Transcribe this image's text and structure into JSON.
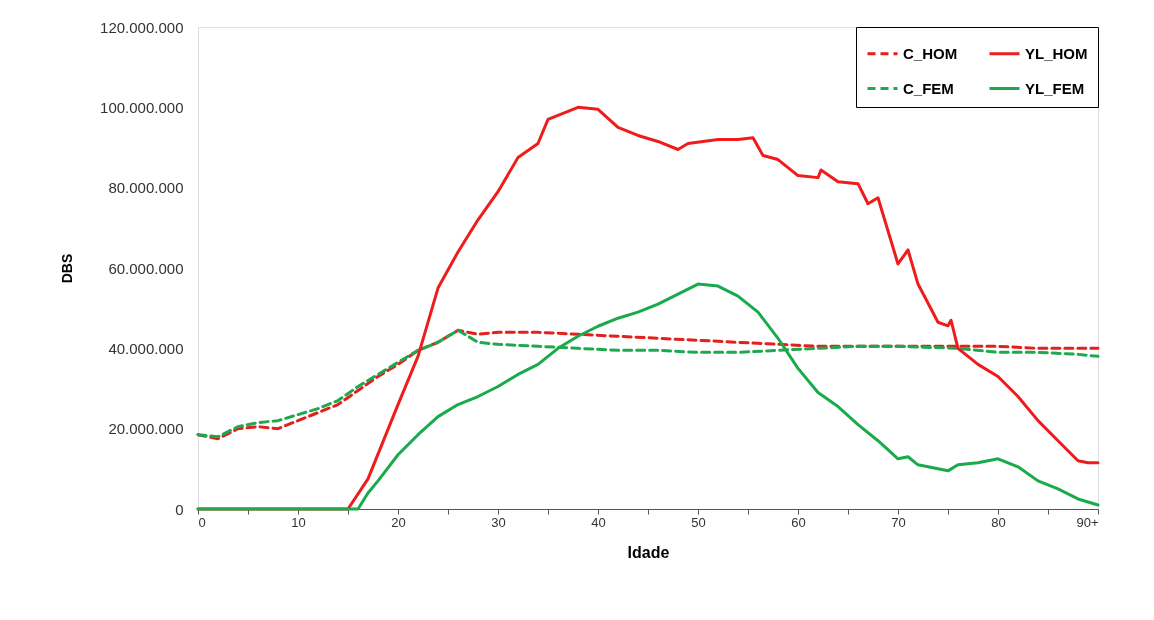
{
  "chart_data": {
    "type": "line",
    "xlabel": "Idade",
    "ylabel": "DBS",
    "xlim": [
      0,
      90
    ],
    "ylim": [
      0,
      120000000
    ],
    "xticks": [
      0,
      {
        "value": 5,
        "label": null
      },
      10,
      {
        "value": 15,
        "label": null
      },
      20,
      {
        "value": 25,
        "label": null
      },
      30,
      {
        "value": 35,
        "label": null
      },
      40,
      {
        "value": 45,
        "label": null
      },
      50,
      {
        "value": 55,
        "label": null
      },
      60,
      {
        "value": 65,
        "label": null
      },
      70,
      {
        "value": 75,
        "label": null
      },
      80,
      {
        "value": 85,
        "label": null
      },
      {
        "value": 90,
        "label": "90+"
      }
    ],
    "yticks": [
      {
        "value": 0,
        "label": "0"
      },
      {
        "value": 20000000,
        "label": "20.000.000"
      },
      {
        "value": 40000000,
        "label": "40.000.000"
      },
      {
        "value": 60000000,
        "label": "60.000.000"
      },
      {
        "value": 80000000,
        "label": "80.000.000"
      },
      {
        "value": 100000000,
        "label": "100.000.000"
      },
      {
        "value": 120000000,
        "label": "120.000.000"
      }
    ],
    "grid": false,
    "legend": "top right",
    "series": [
      {
        "name": "C_HOM",
        "color": "#e3201b",
        "line_style": "dashed",
        "x": [
          0,
          2,
          4,
          6,
          8,
          10,
          12,
          14,
          16,
          18,
          20,
          22,
          24,
          26,
          28,
          30,
          34,
          38,
          42,
          46,
          50,
          54,
          58,
          62,
          66,
          70,
          74,
          80,
          84,
          90
        ],
        "values": [
          18500000,
          17500000,
          20000000,
          20500000,
          20000000,
          22000000,
          24000000,
          26000000,
          29500000,
          33000000,
          36000000,
          39500000,
          41500000,
          44500000,
          43500000,
          44000000,
          44000000,
          43500000,
          43000000,
          42500000,
          42000000,
          41500000,
          41000000,
          40500000,
          40500000,
          40500000,
          40500000,
          40500000,
          40000000,
          40000000
        ]
      },
      {
        "name": "C_FEM",
        "color": "#1fa84f",
        "line_style": "dashed",
        "x": [
          0,
          2,
          4,
          6,
          8,
          10,
          12,
          14,
          16,
          18,
          20,
          22,
          24,
          26,
          28,
          30,
          34,
          38,
          42,
          46,
          50,
          54,
          58,
          62,
          66,
          70,
          76,
          80,
          84,
          88,
          90
        ],
        "values": [
          18500000,
          18000000,
          20500000,
          21500000,
          22000000,
          23500000,
          25000000,
          27000000,
          30500000,
          33500000,
          36500000,
          39500000,
          41500000,
          44500000,
          41500000,
          41000000,
          40500000,
          40000000,
          39500000,
          39500000,
          39000000,
          39000000,
          39500000,
          40000000,
          40500000,
          40500000,
          40000000,
          39000000,
          39000000,
          38500000,
          38000000
        ]
      },
      {
        "name": "YL_HOM",
        "color": "#ee1c1c",
        "line_style": "solid",
        "x": [
          0,
          15,
          17,
          20,
          22,
          24,
          26,
          28,
          30,
          32,
          34,
          35,
          36,
          38,
          40,
          42,
          44,
          46,
          48,
          49,
          52,
          54,
          55.5,
          56.5,
          58,
          60,
          62,
          62.3,
          64,
          66,
          67,
          68,
          70,
          71,
          72,
          74,
          75,
          75.3,
          76,
          78,
          80,
          82,
          84,
          86,
          88,
          89,
          90
        ],
        "values": [
          0,
          0,
          7500000,
          26000000,
          38000000,
          55000000,
          64000000,
          72000000,
          79000000,
          87500000,
          91000000,
          97000000,
          98000000,
          100000000,
          99500000,
          95000000,
          93000000,
          91500000,
          89500000,
          91000000,
          92000000,
          92000000,
          92400000,
          88000000,
          87000000,
          83000000,
          82500000,
          84400000,
          81500000,
          81000000,
          76000000,
          77500000,
          61000000,
          64500000,
          56000000,
          46500000,
          45600000,
          47000000,
          40000000,
          36000000,
          33000000,
          28000000,
          22000000,
          17000000,
          12000000,
          11500000,
          11500000
        ]
      },
      {
        "name": "YL_FEM",
        "color": "#1aaa4b",
        "line_style": "solid",
        "x": [
          0,
          16,
          17,
          18,
          20,
          22,
          24,
          26,
          28,
          30,
          32,
          34,
          36,
          38,
          40,
          42,
          44,
          46,
          48,
          50,
          52,
          54,
          56,
          58,
          60,
          62,
          64,
          66,
          68,
          70,
          71,
          72,
          74,
          75,
          76,
          78,
          80,
          82,
          84,
          86,
          88,
          90
        ],
        "values": [
          0,
          0,
          4000000,
          7000000,
          13500000,
          18500000,
          23000000,
          26000000,
          28000000,
          30500000,
          33500000,
          36000000,
          40000000,
          43000000,
          45500000,
          47500000,
          49000000,
          51000000,
          53500000,
          56000000,
          55500000,
          53000000,
          49000000,
          42500000,
          35000000,
          29000000,
          25500000,
          21000000,
          17000000,
          12500000,
          13000000,
          11000000,
          10000000,
          9500000,
          11000000,
          11500000,
          12500000,
          10500000,
          7000000,
          5000000,
          2500000,
          1000000
        ]
      }
    ]
  }
}
